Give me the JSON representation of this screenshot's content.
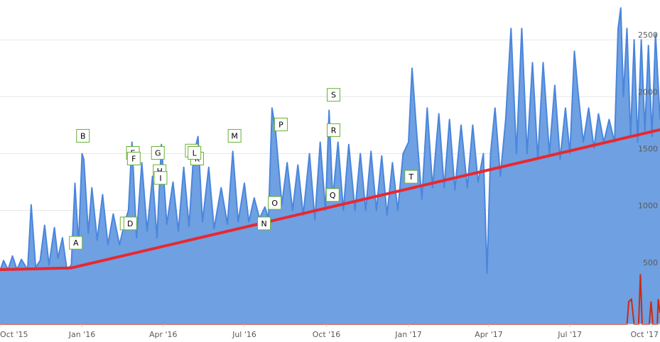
{
  "chart_data": {
    "type": "area",
    "title": "",
    "xlabel": "",
    "ylabel": "",
    "x_ticks": [
      "Oct '15",
      "Jan '16",
      "Apr '16",
      "Jul '16",
      "Oct '16",
      "Jan '17",
      "Apr '17",
      "Jul '17",
      "Oct '17"
    ],
    "y_ticks": [
      "500",
      "1000",
      "1500",
      "2000",
      "2500"
    ],
    "xlim": [
      "2015-10-01",
      "2017-10-10"
    ],
    "ylim": [
      0,
      2850
    ],
    "grid": true,
    "colors": {
      "area": "#6fa0e2",
      "line": "#4a86dc",
      "trend": "#e8282f",
      "spike": "#cc2a14",
      "annot_border": "#66b032"
    },
    "series": [
      {
        "values": [
          [
            "2015-10-01",
            470
          ],
          [
            "2015-10-05",
            560
          ],
          [
            "2015-10-10",
            480
          ],
          [
            "2015-10-15",
            600
          ],
          [
            "2015-10-20",
            480
          ],
          [
            "2015-10-25",
            570
          ],
          [
            "2015-11-01",
            480
          ],
          [
            "2015-11-05",
            1050
          ],
          [
            "2015-11-10",
            500
          ],
          [
            "2015-11-15",
            560
          ],
          [
            "2015-11-20",
            870
          ],
          [
            "2015-11-25",
            520
          ],
          [
            "2015-12-01",
            850
          ],
          [
            "2015-12-05",
            580
          ],
          [
            "2015-12-10",
            760
          ],
          [
            "2015-12-15",
            480
          ],
          [
            "2015-12-20",
            520
          ],
          [
            "2015-12-24",
            1240
          ],
          [
            "2015-12-28",
            700
          ],
          [
            "2016-01-01",
            1500
          ],
          [
            "2016-01-03",
            1450
          ],
          [
            "2016-01-08",
            800
          ],
          [
            "2016-01-12",
            1200
          ],
          [
            "2016-01-18",
            740
          ],
          [
            "2016-01-24",
            1140
          ],
          [
            "2016-01-30",
            700
          ],
          [
            "2016-02-05",
            970
          ],
          [
            "2016-02-12",
            700
          ],
          [
            "2016-02-18",
            900
          ],
          [
            "2016-02-22",
            1000
          ],
          [
            "2016-02-26",
            1600
          ],
          [
            "2016-03-02",
            760
          ],
          [
            "2016-03-08",
            1420
          ],
          [
            "2016-03-14",
            820
          ],
          [
            "2016-03-20",
            1300
          ],
          [
            "2016-03-25",
            760
          ],
          [
            "2016-03-30",
            1580
          ],
          [
            "2016-04-05",
            880
          ],
          [
            "2016-04-12",
            1250
          ],
          [
            "2016-04-18",
            820
          ],
          [
            "2016-04-24",
            1380
          ],
          [
            "2016-04-30",
            860
          ],
          [
            "2016-05-05",
            1480
          ],
          [
            "2016-05-10",
            1650
          ],
          [
            "2016-05-15",
            900
          ],
          [
            "2016-05-22",
            1380
          ],
          [
            "2016-05-28",
            840
          ],
          [
            "2016-06-05",
            1200
          ],
          [
            "2016-06-12",
            880
          ],
          [
            "2016-06-18",
            1520
          ],
          [
            "2016-06-24",
            900
          ],
          [
            "2016-07-01",
            1240
          ],
          [
            "2016-07-06",
            900
          ],
          [
            "2016-07-12",
            1110
          ],
          [
            "2016-07-18",
            930
          ],
          [
            "2016-07-24",
            1030
          ],
          [
            "2016-07-28",
            930
          ],
          [
            "2016-08-01",
            1900
          ],
          [
            "2016-08-05",
            1700
          ],
          [
            "2016-08-12",
            1050
          ],
          [
            "2016-08-18",
            1420
          ],
          [
            "2016-08-24",
            1000
          ],
          [
            "2016-08-30",
            1400
          ],
          [
            "2016-09-05",
            960
          ],
          [
            "2016-09-12",
            1500
          ],
          [
            "2016-09-18",
            920
          ],
          [
            "2016-09-24",
            1600
          ],
          [
            "2016-09-30",
            1000
          ],
          [
            "2016-10-04",
            1880
          ],
          [
            "2016-10-08",
            1100
          ],
          [
            "2016-10-14",
            1600
          ],
          [
            "2016-10-20",
            1000
          ],
          [
            "2016-10-26",
            1580
          ],
          [
            "2016-11-02",
            1000
          ],
          [
            "2016-11-08",
            1500
          ],
          [
            "2016-11-14",
            1000
          ],
          [
            "2016-11-20",
            1520
          ],
          [
            "2016-11-26",
            1000
          ],
          [
            "2016-12-02",
            1480
          ],
          [
            "2016-12-08",
            960
          ],
          [
            "2016-12-14",
            1420
          ],
          [
            "2016-12-20",
            1000
          ],
          [
            "2016-12-26",
            1500
          ],
          [
            "2017-01-01",
            1600
          ],
          [
            "2017-01-05",
            2250
          ],
          [
            "2017-01-10",
            1700
          ],
          [
            "2017-01-16",
            1100
          ],
          [
            "2017-01-22",
            1900
          ],
          [
            "2017-01-28",
            1200
          ],
          [
            "2017-02-04",
            1850
          ],
          [
            "2017-02-10",
            1200
          ],
          [
            "2017-02-16",
            1800
          ],
          [
            "2017-02-22",
            1180
          ],
          [
            "2017-03-01",
            1750
          ],
          [
            "2017-03-08",
            1200
          ],
          [
            "2017-03-14",
            1750
          ],
          [
            "2017-03-20",
            1250
          ],
          [
            "2017-03-26",
            1500
          ],
          [
            "2017-03-30",
            450
          ],
          [
            "2017-04-03",
            1500
          ],
          [
            "2017-04-08",
            1900
          ],
          [
            "2017-04-14",
            1300
          ],
          [
            "2017-04-20",
            1800
          ],
          [
            "2017-04-26",
            2600
          ],
          [
            "2017-05-02",
            1500
          ],
          [
            "2017-05-08",
            2600
          ],
          [
            "2017-05-14",
            1500
          ],
          [
            "2017-05-20",
            2300
          ],
          [
            "2017-05-26",
            1450
          ],
          [
            "2017-06-01",
            2300
          ],
          [
            "2017-06-08",
            1500
          ],
          [
            "2017-06-14",
            2100
          ],
          [
            "2017-06-20",
            1450
          ],
          [
            "2017-06-26",
            1900
          ],
          [
            "2017-07-01",
            1500
          ],
          [
            "2017-07-06",
            2400
          ],
          [
            "2017-07-10",
            2050
          ],
          [
            "2017-07-16",
            1600
          ],
          [
            "2017-07-22",
            1900
          ],
          [
            "2017-07-28",
            1550
          ],
          [
            "2017-08-02",
            1850
          ],
          [
            "2017-08-08",
            1600
          ],
          [
            "2017-08-14",
            1800
          ],
          [
            "2017-08-20",
            1600
          ],
          [
            "2017-08-24",
            2600
          ],
          [
            "2017-08-27",
            2780
          ],
          [
            "2017-08-30",
            2000
          ],
          [
            "2017-09-03",
            2600
          ],
          [
            "2017-09-07",
            1650
          ],
          [
            "2017-09-11",
            2500
          ],
          [
            "2017-09-15",
            1600
          ],
          [
            "2017-09-19",
            2500
          ],
          [
            "2017-09-23",
            1700
          ],
          [
            "2017-09-27",
            2450
          ],
          [
            "2017-10-01",
            1650
          ],
          [
            "2017-10-05",
            2550
          ],
          [
            "2017-10-10",
            1800
          ]
        ]
      },
      {
        "values": [
          [
            "2015-10-01",
            480
          ],
          [
            "2015-12-20",
            495
          ],
          [
            "2017-10-10",
            1710
          ]
        ]
      },
      {
        "values": [
          [
            "2015-10-01",
            0
          ],
          [
            "2017-09-03",
            0
          ],
          [
            "2017-09-05",
            200
          ],
          [
            "2017-09-08",
            220
          ],
          [
            "2017-09-11",
            0
          ],
          [
            "2017-09-16",
            0
          ],
          [
            "2017-09-18",
            440
          ],
          [
            "2017-09-20",
            0
          ],
          [
            "2017-09-28",
            0
          ],
          [
            "2017-09-30",
            200
          ],
          [
            "2017-10-02",
            0
          ],
          [
            "2017-10-07",
            0
          ],
          [
            "2017-10-08",
            220
          ],
          [
            "2017-10-10",
            100
          ]
        ]
      }
    ],
    "annotations": [
      {
        "label": "A",
        "date": "2015-12-25",
        "value": 710
      },
      {
        "label": "B",
        "date": "2016-01-02",
        "value": 1650
      },
      {
        "label": "C",
        "date": "2016-02-20",
        "value": 880
      },
      {
        "label": "D",
        "date": "2016-02-24",
        "value": 880
      },
      {
        "label": "E",
        "date": "2016-02-27",
        "value": 1500
      },
      {
        "label": "F",
        "date": "2016-02-28",
        "value": 1450
      },
      {
        "label": "G",
        "date": "2016-03-26",
        "value": 1500
      },
      {
        "label": "H",
        "date": "2016-03-28",
        "value": 1340
      },
      {
        "label": "I",
        "date": "2016-03-29",
        "value": 1280
      },
      {
        "label": "J",
        "date": "2016-05-03",
        "value": 1520
      },
      {
        "label": "K",
        "date": "2016-05-09",
        "value": 1450
      },
      {
        "label": "L",
        "date": "2016-05-06",
        "value": 1500
      },
      {
        "label": "M",
        "date": "2016-06-20",
        "value": 1650
      },
      {
        "label": "N",
        "date": "2016-07-23",
        "value": 880
      },
      {
        "label": "O",
        "date": "2016-08-04",
        "value": 1060
      },
      {
        "label": "P",
        "date": "2016-08-11",
        "value": 1750
      },
      {
        "label": "Q",
        "date": "2016-10-08",
        "value": 1130
      },
      {
        "label": "R",
        "date": "2016-10-09",
        "value": 1700
      },
      {
        "label": "S",
        "date": "2016-10-09",
        "value": 2010
      },
      {
        "label": "T",
        "date": "2017-01-04",
        "value": 1290
      }
    ]
  }
}
